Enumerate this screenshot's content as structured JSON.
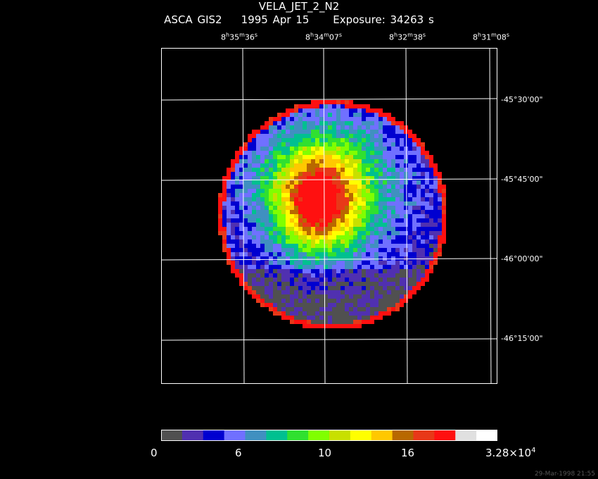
{
  "header": {
    "title": "VELA_JET_2_N2",
    "instrument": "ASCA GIS2",
    "date": "1995 Apr 15",
    "exposure": "Exposure: 34263 s"
  },
  "ra_labels": [
    {
      "h": "8",
      "m": "35",
      "s": "36"
    },
    {
      "h": "8",
      "m": "34",
      "s": "07"
    },
    {
      "h": "8",
      "m": "32",
      "s": "38"
    },
    {
      "h": "8",
      "m": "31",
      "s": "08"
    }
  ],
  "dec_labels": [
    "-45°30'00\"",
    "-45°45'00\"",
    "-46°00'00\"",
    "-46°15'00\""
  ],
  "colorbar": {
    "colors": [
      "#505050",
      "#5030b0",
      "#0000d0",
      "#7070ff",
      "#4090c0",
      "#00c090",
      "#30e030",
      "#80ff00",
      "#c8e000",
      "#ffff00",
      "#ffc800",
      "#b86800",
      "#e83818",
      "#ff1010",
      "#e0e0e0",
      "#ffffff"
    ],
    "labels": [
      "0",
      "6",
      "10",
      "16",
      "3.28×10"
    ],
    "max_exponent": "4"
  },
  "timestamp": "29-Mar-1998 21:55"
}
